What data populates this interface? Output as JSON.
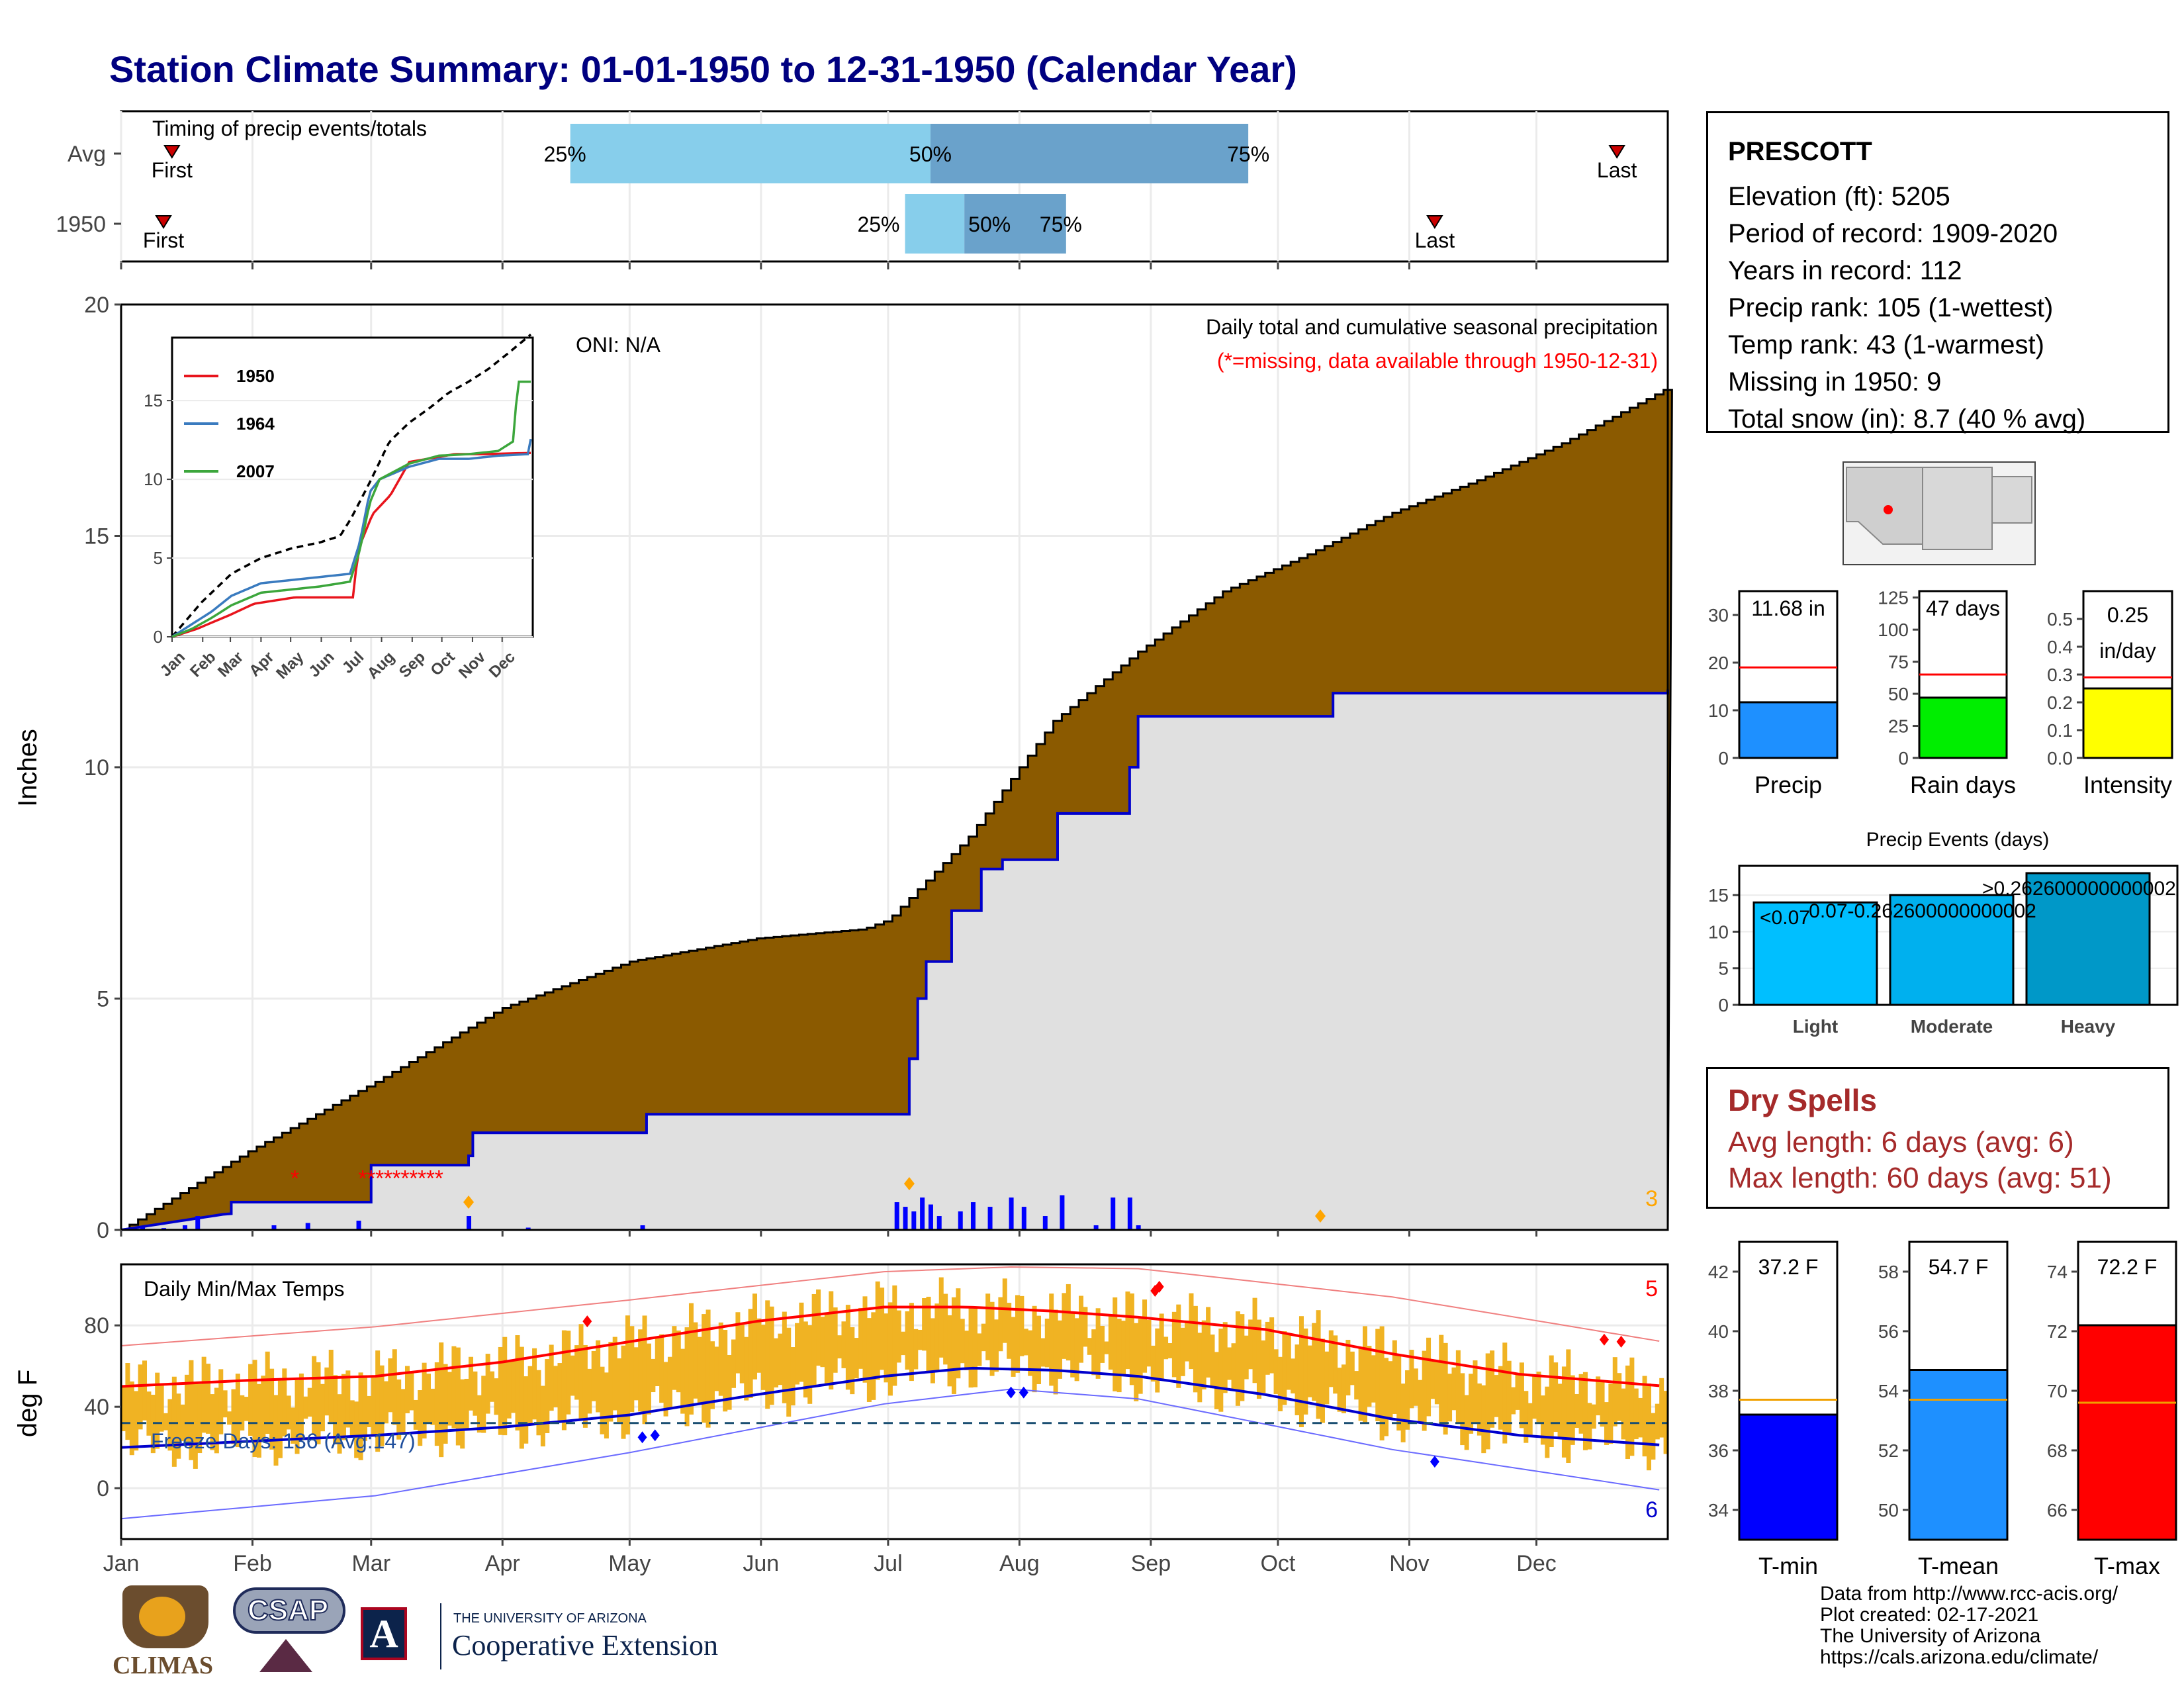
{
  "title": "Station Climate Summary: 01-01-1950 to 12-31-1950 (Calendar Year)",
  "timing": {
    "title": "Timing of precip events/totals",
    "rows": [
      {
        "label": "Avg",
        "first_day": 12,
        "last_day": 353,
        "p25_day": 106,
        "p50_day": 191,
        "p75_day": 266
      },
      {
        "label": "1950",
        "first_day": 10,
        "last_day": 310,
        "p25_day": 185,
        "p50_day": 199,
        "p75_day": 223
      }
    ],
    "labels": {
      "p25": "25%",
      "p50": "50%",
      "p75": "75%",
      "first": "First",
      "last": "Last"
    }
  },
  "precip_panel": {
    "ylabel": "Inches",
    "yticks": [
      "0",
      "5",
      "10",
      "15",
      "20"
    ],
    "ylim": [
      0,
      20
    ],
    "oni": "ONI: N/A",
    "caption": "Daily total and cumulative seasonal precipitation",
    "missing_note": "(*=missing, data available through 1950-12-31)",
    "corner_count": "3"
  },
  "inset": {
    "yticks": [
      "0",
      "5",
      "10",
      "15"
    ],
    "months": [
      "Jan",
      "Feb",
      "Mar",
      "Apr",
      "May",
      "Jun",
      "Jul",
      "Aug",
      "Sep",
      "Oct",
      "Nov",
      "Dec"
    ],
    "legend": [
      "1950",
      "1964",
      "2007"
    ]
  },
  "temp_panel": {
    "title": "Daily Min/Max Temps",
    "ylabel": "deg F",
    "yticks": [
      "0",
      "40",
      "80"
    ],
    "freeze_text": "Freeze Days: 136 (Avg:147)",
    "count_high": "5",
    "count_low": "6"
  },
  "months": [
    "Jan",
    "Feb",
    "Mar",
    "Apr",
    "May",
    "Jun",
    "Jul",
    "Aug",
    "Sep",
    "Oct",
    "Nov",
    "Dec"
  ],
  "station": {
    "name": "PRESCOTT",
    "lines": [
      "Elevation (ft): 5205",
      "Period of record: 1909-2020",
      "Years in record: 112",
      "Precip rank: 105 (1-wettest)",
      "Temp rank: 43 (1-warmest)",
      "Missing in 1950: 9",
      "Total snow (in): 8.7 (40 % avg)"
    ]
  },
  "precip_bars": [
    {
      "label": "Precip",
      "value_text": "11.68 in",
      "value": 11.68,
      "avg": 19.0,
      "ymax": 35,
      "ticks": [
        "0",
        "10",
        "20",
        "30"
      ],
      "tick_vals": [
        0,
        10,
        20,
        30
      ],
      "color": "#1e90ff"
    },
    {
      "label": "Rain days",
      "value_text": "47 days",
      "value": 47,
      "avg": 65,
      "ymax": 130,
      "ticks": [
        "0",
        "25",
        "50",
        "75",
        "100",
        "125"
      ],
      "tick_vals": [
        0,
        25,
        50,
        75,
        100,
        125
      ],
      "color": "#00ee00"
    },
    {
      "label": "Intensity",
      "value_text": "0.25 in/day",
      "value": 0.25,
      "avg": 0.29,
      "ymax": 0.6,
      "ticks": [
        "0.0",
        "0.1",
        "0.2",
        "0.3",
        "0.4",
        "0.5"
      ],
      "tick_vals": [
        0,
        0.1,
        0.2,
        0.3,
        0.4,
        0.5
      ],
      "color": "#ffff00"
    }
  ],
  "precip_events": {
    "title": "Precip Events (days)",
    "categories": [
      "Light",
      "Moderate",
      "Heavy"
    ],
    "values": [
      14,
      15,
      18
    ],
    "bar_labels": [
      "<0.07",
      "0.07-0.262600000000002",
      ">0.262600000000002"
    ],
    "yticks": [
      "0",
      "5",
      "10",
      "15"
    ],
    "ylim": [
      0,
      19
    ]
  },
  "dry_spells": {
    "title": "Dry Spells",
    "avg": "Avg length: 6 days (avg: 6)",
    "max": "Max length: 60 days (avg: 51)"
  },
  "temp_bars": [
    {
      "label": "T-min",
      "value_text": "37.2 F",
      "value": 37.2,
      "avg": 37.7,
      "ymin": 33,
      "ymax": 43,
      "ticks": [
        "34",
        "36",
        "38",
        "40",
        "42"
      ],
      "tick_vals": [
        34,
        36,
        38,
        40,
        42
      ],
      "color": "#0000ff"
    },
    {
      "label": "T-mean",
      "value_text": "54.7 F",
      "value": 54.7,
      "avg": 53.7,
      "ymin": 49,
      "ymax": 59,
      "ticks": [
        "50",
        "52",
        "54",
        "56",
        "58"
      ],
      "tick_vals": [
        50,
        52,
        54,
        56,
        58
      ],
      "color": "#1e90ff"
    },
    {
      "label": "T-max",
      "value_text": "72.2 F",
      "value": 72.2,
      "avg": 69.6,
      "ymin": 65,
      "ymax": 75,
      "ticks": [
        "66",
        "68",
        "70",
        "72",
        "74"
      ],
      "tick_vals": [
        66,
        68,
        70,
        72,
        74
      ],
      "color": "#ff0000"
    }
  ],
  "logos": {
    "climas": "CLIMAS",
    "csap": "CSAP",
    "ua_small": "THE UNIVERSITY OF ARIZONA",
    "ua_big": "Cooperative Extension"
  },
  "credits": [
    "Data from http://www.rcc-acis.org/",
    "Plot created: 02-17-2021",
    "The University of Arizona",
    "https://cals.arizona.edu/climate/"
  ],
  "chart_data": [
    {
      "type": "area",
      "title": "Daily total and cumulative seasonal precipitation",
      "ylabel": "Inches",
      "ylim": [
        0,
        20
      ],
      "x_units": "day of year",
      "series": [
        {
          "name": "",
          "color": "#8b5a00",
          "x": [
            0,
            30,
            60,
            90,
            120,
            150,
            175,
            181,
            200,
            220,
            240,
            260,
            280,
            300,
            320,
            340,
            365
          ],
          "values": [
            0,
            1.7,
            3.2,
            4.8,
            5.8,
            6.3,
            6.5,
            6.7,
            8.5,
            11.0,
            12.5,
            13.8,
            14.6,
            15.5,
            16.2,
            17.0,
            18.2
          ]
        },
        {
          "name": "",
          "color": "#0000cc",
          "x": [
            0,
            25,
            26,
            59,
            82,
            83,
            124,
            183,
            186,
            188,
            190,
            196,
            203,
            208,
            221,
            238,
            240,
            286,
            316,
            365
          ],
          "values": [
            0,
            0.35,
            0.6,
            1.4,
            1.6,
            2.1,
            2.5,
            2.5,
            3.7,
            5.0,
            5.8,
            6.9,
            7.8,
            8.0,
            9.0,
            10.0,
            11.1,
            11.6,
            11.6,
            11.68
          ]
        }
      ]
    },
    {
      "type": "bar",
      "title": "",
      "x_units": "day of year",
      "x": [
        5,
        10,
        15,
        18,
        36,
        44,
        56,
        82,
        96,
        123,
        183,
        185,
        187,
        189,
        191,
        193,
        198,
        201,
        205,
        210,
        213,
        218,
        222,
        230,
        234,
        238,
        240
      ],
      "values": [
        0.05,
        0.04,
        0.1,
        0.3,
        0.1,
        0.15,
        0.2,
        0.3,
        0.05,
        0.1,
        0.6,
        0.5,
        0.4,
        0.7,
        0.55,
        0.3,
        0.4,
        0.6,
        0.5,
        0.7,
        0.5,
        0.3,
        0.75,
        0.1,
        0.7,
        0.7,
        0.1
      ]
    },
    {
      "type": "line",
      "title": "",
      "legend_position": "top-left",
      "xlabels": [
        "Jan",
        "Feb",
        "Mar",
        "Apr",
        "May",
        "Jun",
        "Jul",
        "Aug",
        "Sep",
        "Oct",
        "Nov",
        "Dec"
      ],
      "ylim": [
        0,
        19
      ],
      "series": [
        {
          "name": "",
          "style": "dashed",
          "color": "#000000",
          "x": [
            0,
            30,
            60,
            90,
            120,
            150,
            170,
            181,
            200,
            220,
            240,
            260,
            280,
            300,
            320,
            340,
            365
          ],
          "values": [
            0,
            2.2,
            4.0,
            5.0,
            5.6,
            6.0,
            6.4,
            7.5,
            9.8,
            12.4,
            13.6,
            14.5,
            15.5,
            16.2,
            17.0,
            18.0,
            19.3
          ]
        },
        {
          "name": "1950",
          "color": "#e8141c",
          "x": [
            0,
            25,
            59,
            83,
            124,
            150,
            183,
            186,
            190,
            203,
            221,
            240,
            286,
            316,
            365
          ],
          "values": [
            0,
            0.5,
            1.4,
            2.1,
            2.5,
            2.5,
            2.5,
            4.2,
            5.8,
            7.8,
            9.0,
            11.1,
            11.6,
            11.6,
            11.68
          ]
        },
        {
          "name": "1964",
          "color": "#3a7bbf",
          "x": [
            0,
            20,
            40,
            60,
            90,
            120,
            150,
            180,
            190,
            200,
            210,
            240,
            270,
            300,
            330,
            360,
            365
          ],
          "values": [
            0,
            0.8,
            1.6,
            2.6,
            3.4,
            3.6,
            3.8,
            4.0,
            6.0,
            9.2,
            10.0,
            10.8,
            11.3,
            11.3,
            11.5,
            11.6,
            13.2
          ]
        },
        {
          "name": "2007",
          "color": "#3ca63c",
          "x": [
            0,
            20,
            40,
            60,
            90,
            120,
            150,
            180,
            190,
            200,
            210,
            240,
            270,
            300,
            330,
            345,
            350,
            365
          ],
          "values": [
            0,
            0.5,
            1.2,
            2.0,
            2.8,
            3.0,
            3.2,
            3.5,
            5.5,
            8.5,
            10.0,
            11.0,
            11.5,
            11.6,
            11.8,
            12.4,
            16.2,
            16.2
          ]
        }
      ]
    },
    {
      "type": "line",
      "title": "Daily Min/Max Temps",
      "ylabel": "deg F",
      "ylim": [
        -25,
        110
      ],
      "x_units": "day of year",
      "series": [
        {
          "name": "",
          "color": "#ff0000",
          "x": [
            0,
            30,
            60,
            90,
            120,
            150,
            180,
            200,
            220,
            240,
            270,
            300,
            330,
            365
          ],
          "values": [
            50,
            53,
            55,
            62,
            72,
            82,
            89,
            89,
            87,
            84,
            78,
            66,
            56,
            50
          ]
        },
        {
          "name": "",
          "color": "#0000cc",
          "x": [
            0,
            30,
            60,
            90,
            120,
            150,
            180,
            200,
            220,
            240,
            270,
            300,
            330,
            365
          ],
          "values": [
            20,
            23,
            26,
            30,
            36,
            46,
            55,
            59,
            58,
            55,
            46,
            34,
            26,
            21
          ]
        },
        {
          "name": "",
          "color": "#f08080",
          "x": [
            0,
            60,
            120,
            180,
            210,
            240,
            300,
            365
          ],
          "values": [
            70,
            78,
            90,
            103,
            105,
            104,
            90,
            68
          ]
        },
        {
          "name": "",
          "color": "#6a6aff",
          "x": [
            0,
            60,
            120,
            180,
            210,
            240,
            300,
            365
          ],
          "values": [
            -15,
            -5,
            15,
            38,
            45,
            40,
            15,
            -5
          ]
        }
      ],
      "freeze_line": 32
    }
  ]
}
